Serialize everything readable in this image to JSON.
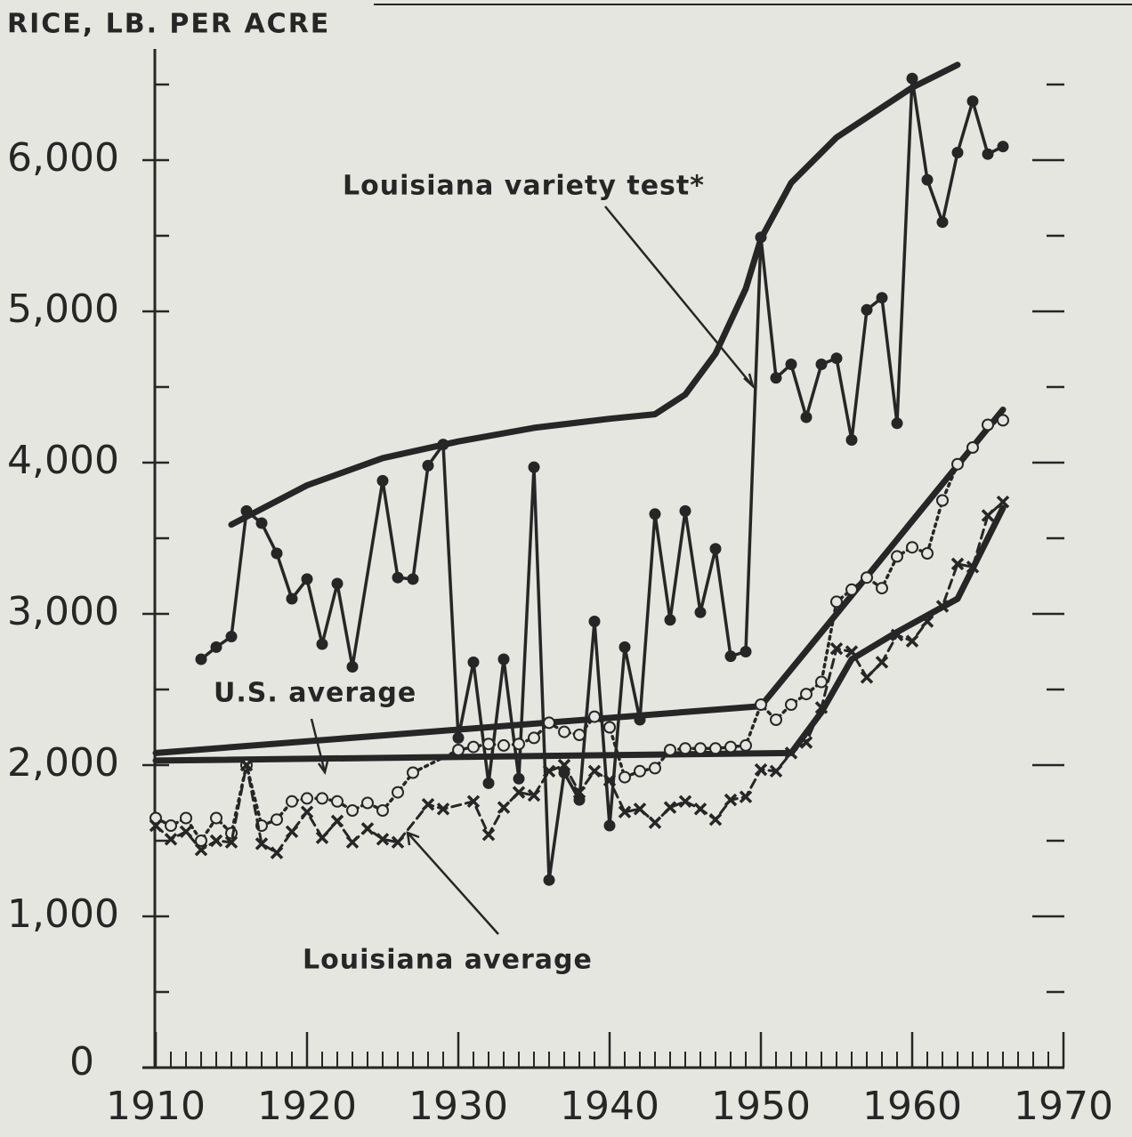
{
  "chart_data": {
    "type": "line",
    "y_label": "RICE, LB. PER ACRE",
    "xlim": [
      1910,
      1970
    ],
    "ylim": [
      0,
      7000
    ],
    "xticks": [
      1910,
      1920,
      1930,
      1940,
      1950,
      1960,
      1970
    ],
    "x_minor_step": 1,
    "yticks": [
      0,
      {
        "value": 1000,
        "label": "1,000"
      },
      {
        "value": 2000,
        "label": "2,000"
      },
      {
        "value": 3000,
        "label": "3,000"
      },
      {
        "value": 4000,
        "label": "4,000"
      },
      {
        "value": 5000,
        "label": "5,000"
      },
      {
        "value": 6000,
        "label": "6,000"
      }
    ],
    "y_minor_ticks": [
      500,
      1500,
      2500,
      3500,
      4500,
      5500,
      6500
    ],
    "annotations": [
      "Louisiana variety test*",
      "U.S. average",
      "Louisiana average"
    ],
    "series": [
      {
        "color": "#262626",
        "line": "thick",
        "x": [
          1915,
          1920,
          1925,
          1930,
          1935,
          1940,
          1943,
          1945,
          1947,
          1949,
          1950,
          1952,
          1955,
          1960,
          1963
        ],
        "values": [
          3590,
          3850,
          4030,
          4140,
          4230,
          4290,
          4320,
          4450,
          4720,
          5150,
          5480,
          5850,
          6150,
          6480,
          6630
        ]
      },
      {
        "color": "#262626",
        "line": "thick",
        "x": [
          1910,
          1950,
          1955,
          1966
        ],
        "values": [
          2080,
          2390,
          3000,
          4350
        ]
      },
      {
        "color": "#262626",
        "line": "thick",
        "x": [
          1910,
          1952,
          1954,
          1956,
          1959,
          1963,
          1966
        ],
        "values": [
          2030,
          2080,
          2350,
          2700,
          2880,
          3100,
          3700
        ]
      },
      {
        "color": "#262626",
        "line": "solid",
        "marker": "dot",
        "x": [
          1913,
          1914,
          1915,
          1916,
          1917,
          1918,
          1919,
          1920,
          1921,
          1922,
          1923,
          1925,
          1926,
          1927,
          1928,
          1929,
          1930,
          1931,
          1932,
          1933,
          1934,
          1935,
          1936,
          1937,
          1938,
          1939,
          1940,
          1941,
          1942,
          1943,
          1944,
          1945,
          1946,
          1947,
          1948,
          1949,
          1950,
          1951,
          1952,
          1953,
          1954,
          1955,
          1956,
          1957,
          1958,
          1959,
          1960,
          1961,
          1962,
          1963,
          1964,
          1965,
          1966
        ],
        "values": [
          2700,
          2780,
          2850,
          3680,
          3600,
          3400,
          3100,
          3230,
          2800,
          3200,
          2650,
          3880,
          3240,
          3230,
          3980,
          4120,
          2180,
          2680,
          1880,
          2700,
          1910,
          3970,
          1240,
          1950,
          1770,
          2950,
          1600,
          2780,
          2300,
          3660,
          2960,
          3680,
          3010,
          3430,
          2720,
          2750,
          5490,
          4560,
          4650,
          4300,
          4650,
          4690,
          4150,
          5010,
          5090,
          4260,
          6540,
          5870,
          5590,
          6050,
          6390,
          6040,
          6090
        ]
      },
      {
        "color": "#262626",
        "line": "dotted",
        "marker": "circle",
        "x": [
          1910,
          1911,
          1912,
          1913,
          1914,
          1915,
          1916,
          1917,
          1918,
          1919,
          1920,
          1921,
          1922,
          1923,
          1924,
          1925,
          1926,
          1927,
          1930,
          1931,
          1932,
          1933,
          1934,
          1935,
          1936,
          1937,
          1938,
          1939,
          1940,
          1941,
          1942,
          1943,
          1944,
          1945,
          1946,
          1947,
          1948,
          1949,
          1950,
          1951,
          1952,
          1953,
          1954,
          1955,
          1956,
          1957,
          1958,
          1959,
          1960,
          1961,
          1962,
          1963,
          1964,
          1965,
          1966
        ],
        "values": [
          1650,
          1600,
          1650,
          1500,
          1650,
          1550,
          2000,
          1600,
          1640,
          1760,
          1780,
          1780,
          1760,
          1700,
          1750,
          1700,
          1820,
          1950,
          2100,
          2120,
          2140,
          2130,
          2140,
          2180,
          2280,
          2220,
          2200,
          2320,
          2250,
          1920,
          1960,
          1980,
          2100,
          2110,
          2110,
          2110,
          2120,
          2130,
          2400,
          2300,
          2400,
          2470,
          2550,
          3080,
          3160,
          3240,
          3170,
          3380,
          3440,
          3400,
          3750,
          3990,
          4100,
          4250,
          4280
        ]
      },
      {
        "color": "#262626",
        "line": "dashed",
        "marker": "x",
        "x": [
          1910,
          1911,
          1912,
          1913,
          1914,
          1915,
          1916,
          1917,
          1918,
          1919,
          1920,
          1921,
          1922,
          1923,
          1924,
          1925,
          1926,
          1928,
          1929,
          1931,
          1932,
          1933,
          1934,
          1935,
          1936,
          1937,
          1938,
          1939,
          1940,
          1941,
          1942,
          1943,
          1944,
          1945,
          1946,
          1947,
          1948,
          1949,
          1950,
          1951,
          1952,
          1953,
          1954,
          1955,
          1956,
          1957,
          1958,
          1959,
          1960,
          1961,
          1962,
          1963,
          1964,
          1965,
          1966
        ],
        "values": [
          1600,
          1510,
          1560,
          1440,
          1500,
          1490,
          2000,
          1480,
          1420,
          1560,
          1690,
          1520,
          1630,
          1490,
          1580,
          1510,
          1490,
          1740,
          1710,
          1760,
          1540,
          1720,
          1820,
          1800,
          1960,
          2000,
          1820,
          1960,
          1900,
          1690,
          1710,
          1620,
          1720,
          1760,
          1710,
          1640,
          1770,
          1790,
          1970,
          1960,
          2080,
          2150,
          2380,
          2770,
          2750,
          2580,
          2680,
          2860,
          2820,
          2950,
          3050,
          3330,
          3310,
          3650,
          3740
        ]
      }
    ]
  }
}
